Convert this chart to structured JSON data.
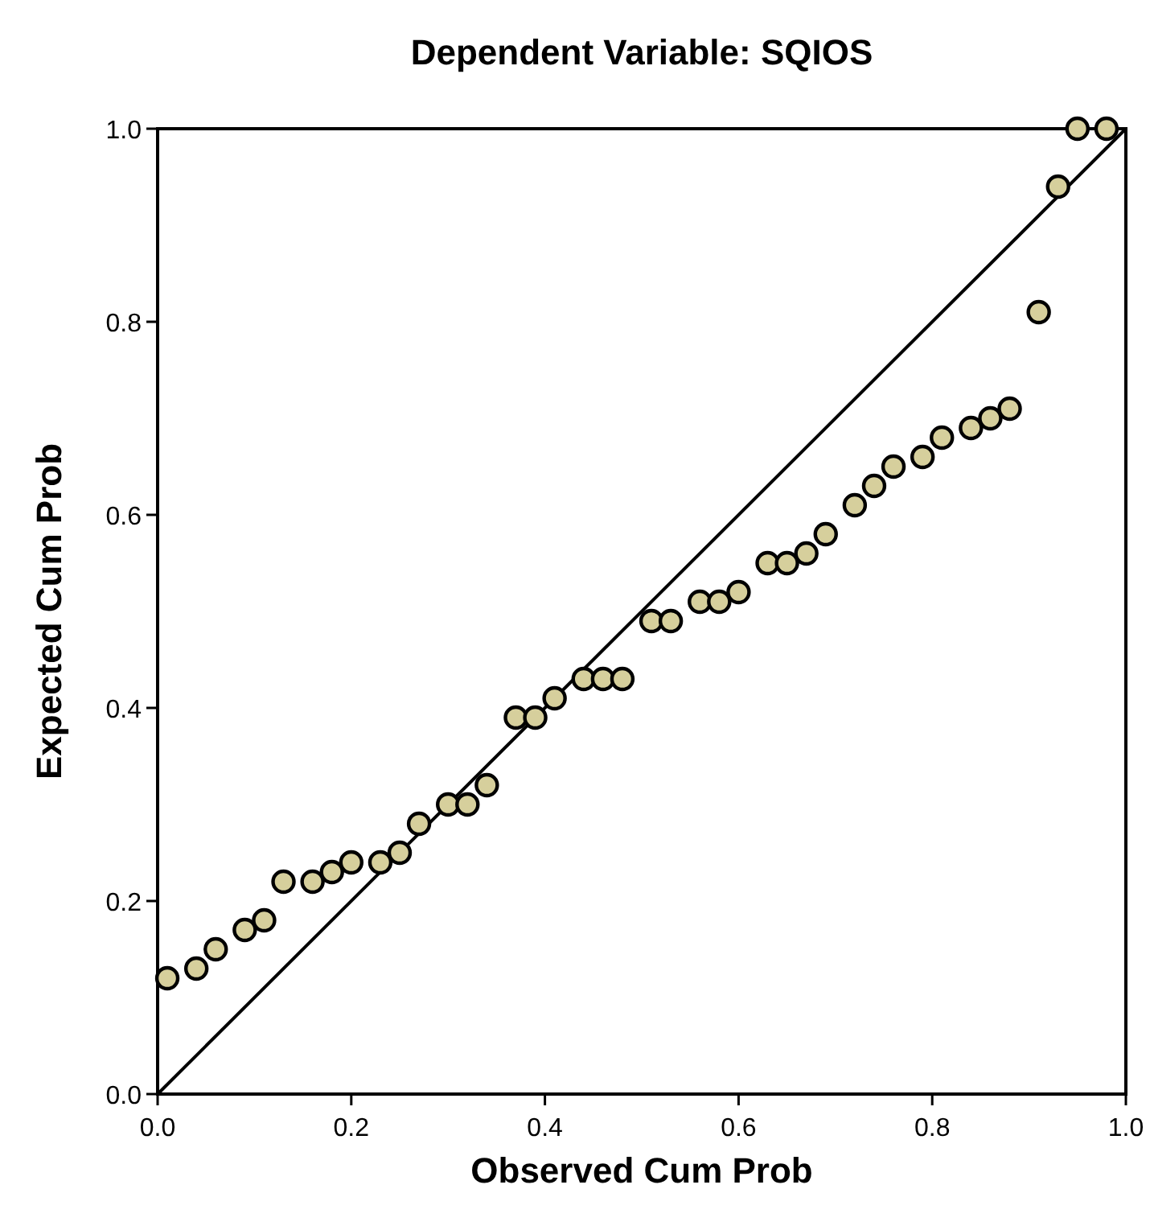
{
  "chart_data": {
    "type": "scatter",
    "title": "Dependent Variable: SQIOS",
    "xlabel": "Observed Cum Prob",
    "ylabel": "Expected Cum Prob",
    "xlim": [
      0,
      1
    ],
    "ylim": [
      0,
      1
    ],
    "xticks": [
      {
        "value": 0,
        "label": "0.0"
      },
      {
        "value": 0.2,
        "label": "0.2"
      },
      {
        "value": 0.4,
        "label": "0.4"
      },
      {
        "value": 0.6,
        "label": "0.6"
      },
      {
        "value": 0.8,
        "label": "0.8"
      },
      {
        "value": 1,
        "label": "1.0"
      }
    ],
    "yticks": [
      {
        "value": 0,
        "label": "0.0"
      },
      {
        "value": 0.2,
        "label": "0.2"
      },
      {
        "value": 0.4,
        "label": "0.4"
      },
      {
        "value": 0.6,
        "label": "0.6"
      },
      {
        "value": 0.8,
        "label": "0.8"
      },
      {
        "value": 1,
        "label": "1.0"
      }
    ],
    "grid": false,
    "series": [
      {
        "marker": "circle",
        "color": "#d6cf9c",
        "x": [
          0.01,
          0.04,
          0.06,
          0.09,
          0.11,
          0.13,
          0.16,
          0.18,
          0.2,
          0.23,
          0.25,
          0.27,
          0.3,
          0.32,
          0.34,
          0.37,
          0.39,
          0.41,
          0.44,
          0.46,
          0.48,
          0.51,
          0.53,
          0.56,
          0.58,
          0.6,
          0.63,
          0.65,
          0.67,
          0.69,
          0.72,
          0.74,
          0.76,
          0.79,
          0.81,
          0.84,
          0.86,
          0.88,
          0.91,
          0.93,
          0.95,
          0.98
        ],
        "values": [
          0.12,
          0.13,
          0.15,
          0.17,
          0.18,
          0.22,
          0.22,
          0.23,
          0.24,
          0.24,
          0.25,
          0.28,
          0.3,
          0.3,
          0.32,
          0.39,
          0.39,
          0.41,
          0.43,
          0.43,
          0.43,
          0.49,
          0.49,
          0.51,
          0.51,
          0.52,
          0.55,
          0.55,
          0.56,
          0.58,
          0.61,
          0.63,
          0.65,
          0.66,
          0.68,
          0.69,
          0.7,
          0.71,
          0.81,
          0.94,
          1.0,
          1.0
        ]
      },
      {
        "type": "line",
        "color": "#000000",
        "x": [
          0,
          1
        ],
        "values": [
          0,
          1
        ],
        "line_style": "solid"
      }
    ]
  }
}
